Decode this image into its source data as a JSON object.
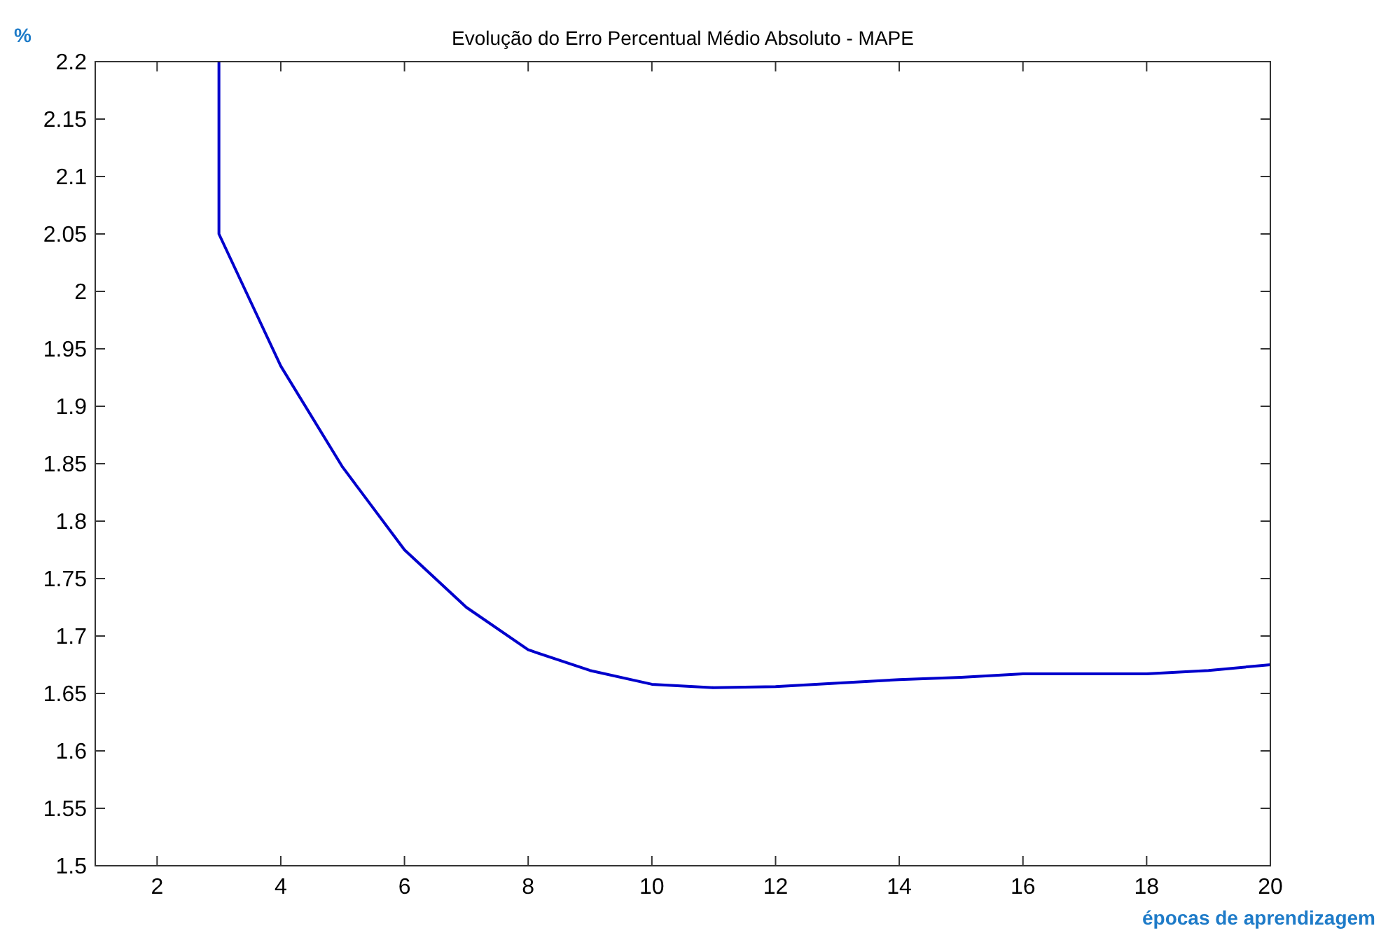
{
  "chart_data": {
    "type": "line",
    "title": "Evolução do Erro Percentual Médio Absoluto - MAPE",
    "xlabel": "épocas de aprendizagem",
    "ylabel": "%",
    "series": [
      {
        "color": "#0000cc",
        "x": [
          3,
          3,
          4,
          5,
          6,
          7,
          8,
          9,
          10,
          11,
          12,
          13,
          14,
          15,
          16,
          17,
          18,
          19,
          20
        ],
        "values": [
          2.2,
          2.05,
          1.935,
          1.847,
          1.775,
          1.725,
          1.688,
          1.67,
          1.658,
          1.655,
          1.656,
          1.659,
          1.662,
          1.664,
          1.667,
          1.667,
          1.667,
          1.67,
          1.675
        ]
      }
    ],
    "xlim": [
      1,
      20
    ],
    "xticks": [
      2,
      4,
      6,
      8,
      10,
      12,
      14,
      16,
      18,
      20
    ],
    "ylim": [
      1.5,
      2.2
    ],
    "yticks": [
      1.5,
      1.55,
      1.6,
      1.65,
      1.7,
      1.75,
      1.8,
      1.85,
      1.9,
      1.95,
      2,
      2.05,
      2.1,
      2.15,
      2.2
    ],
    "grid": false,
    "marker": "none",
    "line_style": "solid"
  }
}
